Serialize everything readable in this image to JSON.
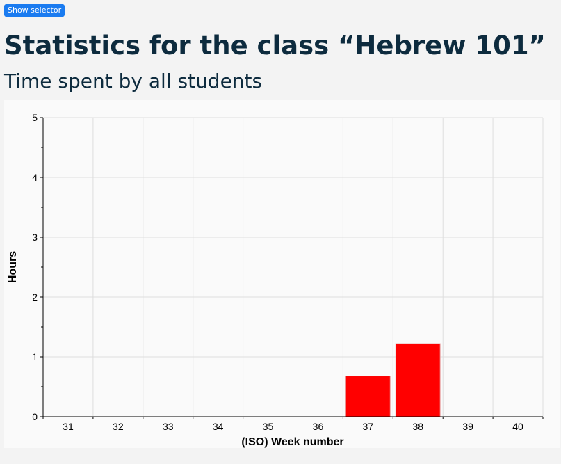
{
  "header": {
    "selector_button_label": "Show selector",
    "title": "Statistics for the class “Hebrew 101”",
    "subtitle": "Time spent by all students"
  },
  "colors": {
    "accent": "#1a7bf0",
    "title_text": "#0d2b3e",
    "bar": "#ff0000"
  },
  "chart_data": {
    "type": "bar",
    "categories": [
      "31",
      "32",
      "33",
      "34",
      "35",
      "36",
      "37",
      "38",
      "39",
      "40"
    ],
    "values": [
      0,
      0,
      0,
      0,
      0,
      0,
      0.68,
      1.22,
      0,
      0
    ],
    "xlabel": "(ISO) Week number",
    "ylabel": "Hours",
    "ylim": [
      0,
      5
    ],
    "yticks": [
      0,
      1,
      2,
      3,
      4,
      5
    ],
    "grid": true
  }
}
